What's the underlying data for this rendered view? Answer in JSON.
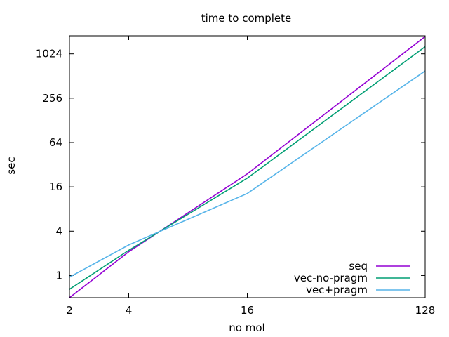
{
  "chart_data": {
    "type": "line",
    "title": "time to complete",
    "xlabel": "no mol",
    "ylabel": "sec",
    "x_scale": "log2",
    "y_scale": "log2",
    "xlim": [
      2,
      128
    ],
    "ylim": [
      0.5,
      1800
    ],
    "x_ticks": [
      {
        "value": 2,
        "label": "2"
      },
      {
        "value": 4,
        "label": "4"
      },
      {
        "value": 16,
        "label": "16"
      },
      {
        "value": 128,
        "label": "128"
      }
    ],
    "y_ticks": [
      {
        "value": 1,
        "label": "1"
      },
      {
        "value": 4,
        "label": "4"
      },
      {
        "value": 16,
        "label": "16"
      },
      {
        "value": 64,
        "label": "64"
      },
      {
        "value": 256,
        "label": "256"
      },
      {
        "value": 1024,
        "label": "1024"
      }
    ],
    "grid": false,
    "legend_position": "bottom-right",
    "series": [
      {
        "name": "seq",
        "color": "#9400d3",
        "points": [
          [
            2,
            0.5
          ],
          [
            4,
            2.1
          ],
          [
            16,
            24
          ],
          [
            128,
            1760
          ]
        ]
      },
      {
        "name": "vec-no-pragm",
        "color": "#009e73",
        "points": [
          [
            2,
            0.65
          ],
          [
            4,
            2.2
          ],
          [
            16,
            21
          ],
          [
            128,
            1280
          ]
        ]
      },
      {
        "name": "vec+pragm",
        "color": "#56b4e9",
        "points": [
          [
            2,
            0.95
          ],
          [
            4,
            2.6
          ],
          [
            16,
            13
          ],
          [
            128,
            600
          ]
        ]
      }
    ]
  }
}
